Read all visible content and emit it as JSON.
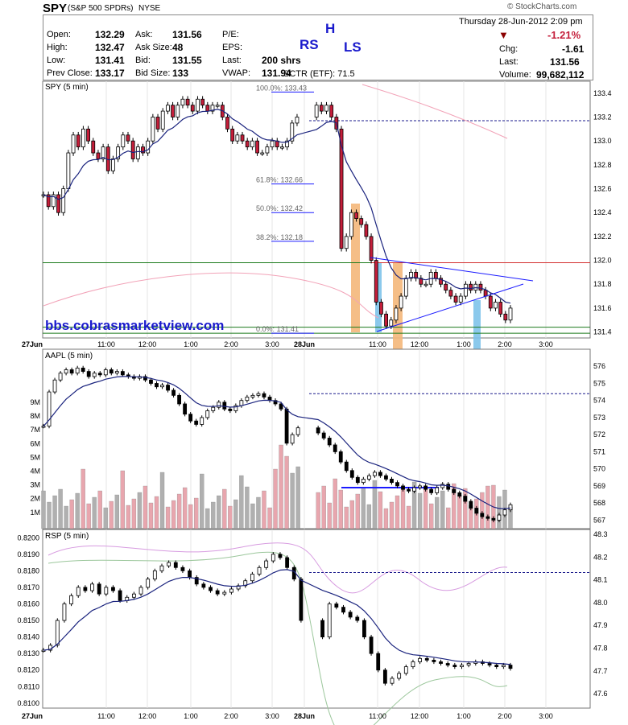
{
  "header": {
    "symbol": "SPY",
    "name": "(S&P 500 SPDRs)",
    "exchange": "NYSE",
    "copyright": "© StockCharts.com",
    "date": "Thursday  28-Jun-2012  2:09 pm",
    "quote_left": [
      {
        "k": "Open:",
        "v": "132.29"
      },
      {
        "k": "High:",
        "v": "132.47"
      },
      {
        "k": "Low:",
        "v": "131.41"
      },
      {
        "k": "Prev Close:",
        "v": "133.17"
      }
    ],
    "quote_mid": [
      {
        "k": "Ask:",
        "v": "131.56"
      },
      {
        "k": "Ask Size:",
        "v": "48"
      },
      {
        "k": "Bid:",
        "v": "131.55"
      },
      {
        "k": "Bid Size:",
        "v": "133"
      }
    ],
    "quote_right": [
      {
        "k": "P/E:",
        "v": ""
      },
      {
        "k": "EPS:",
        "v": ""
      },
      {
        "k": "Last:",
        "v": "200 shrs"
      },
      {
        "k": "VWAP:",
        "v": "131.94"
      }
    ],
    "sctr": "SCTR (ETF):  71.5",
    "change_pct": "-1.21%",
    "chg_label": "Chg:",
    "chg": "-1.61",
    "last_label": "Last:",
    "last": "131.56",
    "volume_label": "Volume:",
    "volume": "99,682,112",
    "pattern_labels": {
      "left": "RS",
      "head": "H",
      "right": "LS"
    }
  },
  "colors": {
    "up": "#ffffff",
    "down": "#c41e3a",
    "ma": "#1a237e",
    "pattern": "#1a1aff",
    "orange": "#f4b77a",
    "cyan": "#7ec3ea",
    "green": "#1b7a1b",
    "red": "#d32f2f",
    "watermark": "#1a1acc"
  },
  "chart_data": [
    {
      "type": "candlestick",
      "title": "SPY (5 min)",
      "watermark": "bbs.cobrasmarketview.com",
      "ylim": [
        131.35,
        133.5
      ],
      "y_ticks": [
        "133.4",
        "133.2",
        "133.0",
        "132.8",
        "132.6",
        "132.4",
        "132.2",
        "132.0",
        "131.8",
        "131.6",
        "131.4"
      ],
      "x_ticks": [
        "27Jun",
        "11:00",
        "12:00",
        "1:00",
        "2:00",
        "3:00",
        "28Jun",
        "11:00",
        "12:00",
        "1:00",
        "2:00",
        "3:00"
      ],
      "fib_levels": [
        {
          "label": "100.0%: 133.43",
          "value": 133.43
        },
        {
          "label": "61.8%: 132.66",
          "value": 132.66
        },
        {
          "label": "50.0%: 132.42",
          "value": 132.42
        },
        {
          "label": "38.2%: 132.18",
          "value": 132.18
        },
        {
          "label": "0.0%: 131.41",
          "value": 131.41
        }
      ],
      "horizontal_lines": {
        "prev_close": 133.17,
        "red_resistance": 131.98,
        "green_support": [
          131.98,
          131.44,
          131.39
        ]
      },
      "closes": [
        132.55,
        132.45,
        132.55,
        132.4,
        132.6,
        132.9,
        133.05,
        132.95,
        133.1,
        133.0,
        132.9,
        132.85,
        132.95,
        132.75,
        132.85,
        132.95,
        133.05,
        133.0,
        132.85,
        132.95,
        132.9,
        133.0,
        133.2,
        133.1,
        133.25,
        133.3,
        133.2,
        133.3,
        133.35,
        133.3,
        133.25,
        133.35,
        133.3,
        133.25,
        133.3,
        133.3,
        133.2,
        133.1,
        133.0,
        133.05,
        133.0,
        132.95,
        133.0,
        132.9,
        132.9,
        132.95,
        133.0,
        132.95,
        132.95,
        133.0,
        133.15,
        133.2,
        133.3,
        133.25,
        133.3,
        133.2,
        133.1,
        132.1,
        132.2,
        132.4,
        132.35,
        132.3,
        132.2,
        132.0,
        131.65,
        131.55,
        131.45,
        131.5,
        131.6,
        131.7,
        131.85,
        131.9,
        131.85,
        131.8,
        131.8,
        131.9,
        131.85,
        131.8,
        131.75,
        131.7,
        131.65,
        131.7,
        131.8,
        131.75,
        131.8,
        131.75,
        131.7,
        131.6,
        131.65,
        131.55,
        131.5,
        131.6
      ]
    },
    {
      "type": "candlestick+volume",
      "title": "AAPL (5 min)",
      "ylim": [
        566.5,
        577
      ],
      "y_ticks": [
        "576",
        "575",
        "574",
        "573",
        "572",
        "571",
        "570",
        "569",
        "568",
        "567"
      ],
      "volume_ticks": [
        "9M",
        "8M",
        "7M",
        "6M",
        "5M",
        "4M",
        "3M",
        "2M",
        "1M"
      ],
      "horizontal_lines": {
        "prev_close": 574.4,
        "support": 568.9
      },
      "closes": [
        572.5,
        574.5,
        575.2,
        575.6,
        575.8,
        575.6,
        575.9,
        575.7,
        575.4,
        575.6,
        575.5,
        575.8,
        575.6,
        575.7,
        575.5,
        575.4,
        575.3,
        575.4,
        575.2,
        575.0,
        574.8,
        574.9,
        574.6,
        574.3,
        573.8,
        573.2,
        572.8,
        572.6,
        573.0,
        573.4,
        573.6,
        573.9,
        573.5,
        573.4,
        573.7,
        574.0,
        574.2,
        574.3,
        574.4,
        574.2,
        574.0,
        573.8,
        573.5,
        571.5,
        572.0,
        572.4,
        572.1,
        571.8,
        571.4,
        571.0,
        570.4,
        569.9,
        569.5,
        569.2,
        569.4,
        569.6,
        569.8,
        569.6,
        569.4,
        569.2,
        569.0,
        568.8,
        568.7,
        568.9,
        569.0,
        568.8,
        568.6,
        568.9,
        569.1,
        568.8,
        568.6,
        568.4,
        568.1,
        567.7,
        567.4,
        567.2,
        567.1,
        567.0,
        567.3,
        567.6,
        567.9
      ]
    },
    {
      "type": "candlestick",
      "title": "RSP (5 min)",
      "ylim": [
        0.8097,
        0.8205
      ],
      "y_ticks_left": [
        "0.8200",
        "0.8190",
        "0.8180",
        "0.8170",
        "0.8160",
        "0.8150",
        "0.8140",
        "0.8130",
        "0.8120",
        "0.8110",
        "0.8100"
      ],
      "y_ticks_right": [
        "48.3",
        "48.2",
        "48.1",
        "48.0",
        "47.9",
        "47.8",
        "47.7",
        "47.6"
      ],
      "x_ticks": [
        "27Jun",
        "11:00",
        "12:00",
        "1:00",
        "2:00",
        "3:00",
        "28Jun",
        "11:00",
        "12:00",
        "1:00",
        "2:00",
        "3:00"
      ],
      "horizontal_lines": {
        "prev_close": 0.8179
      },
      "closes": [
        0.8132,
        0.8135,
        0.815,
        0.816,
        0.8165,
        0.817,
        0.8168,
        0.8172,
        0.8166,
        0.817,
        0.8168,
        0.8162,
        0.8164,
        0.8166,
        0.817,
        0.8175,
        0.818,
        0.8183,
        0.8185,
        0.8182,
        0.818,
        0.8176,
        0.8172,
        0.817,
        0.8168,
        0.8166,
        0.8167,
        0.8169,
        0.8171,
        0.8174,
        0.8178,
        0.8182,
        0.8186,
        0.819,
        0.8188,
        0.8182,
        0.8175,
        0.815,
        0.814,
        0.816,
        0.8158,
        0.8155,
        0.8152,
        0.815,
        0.814,
        0.813,
        0.812,
        0.8112,
        0.8115,
        0.8118,
        0.8122,
        0.8125,
        0.8127,
        0.8126,
        0.8125,
        0.8124,
        0.8123,
        0.8122,
        0.8123,
        0.8124,
        0.8125,
        0.8124,
        0.8123,
        0.8122,
        0.8123,
        0.8121
      ]
    }
  ]
}
